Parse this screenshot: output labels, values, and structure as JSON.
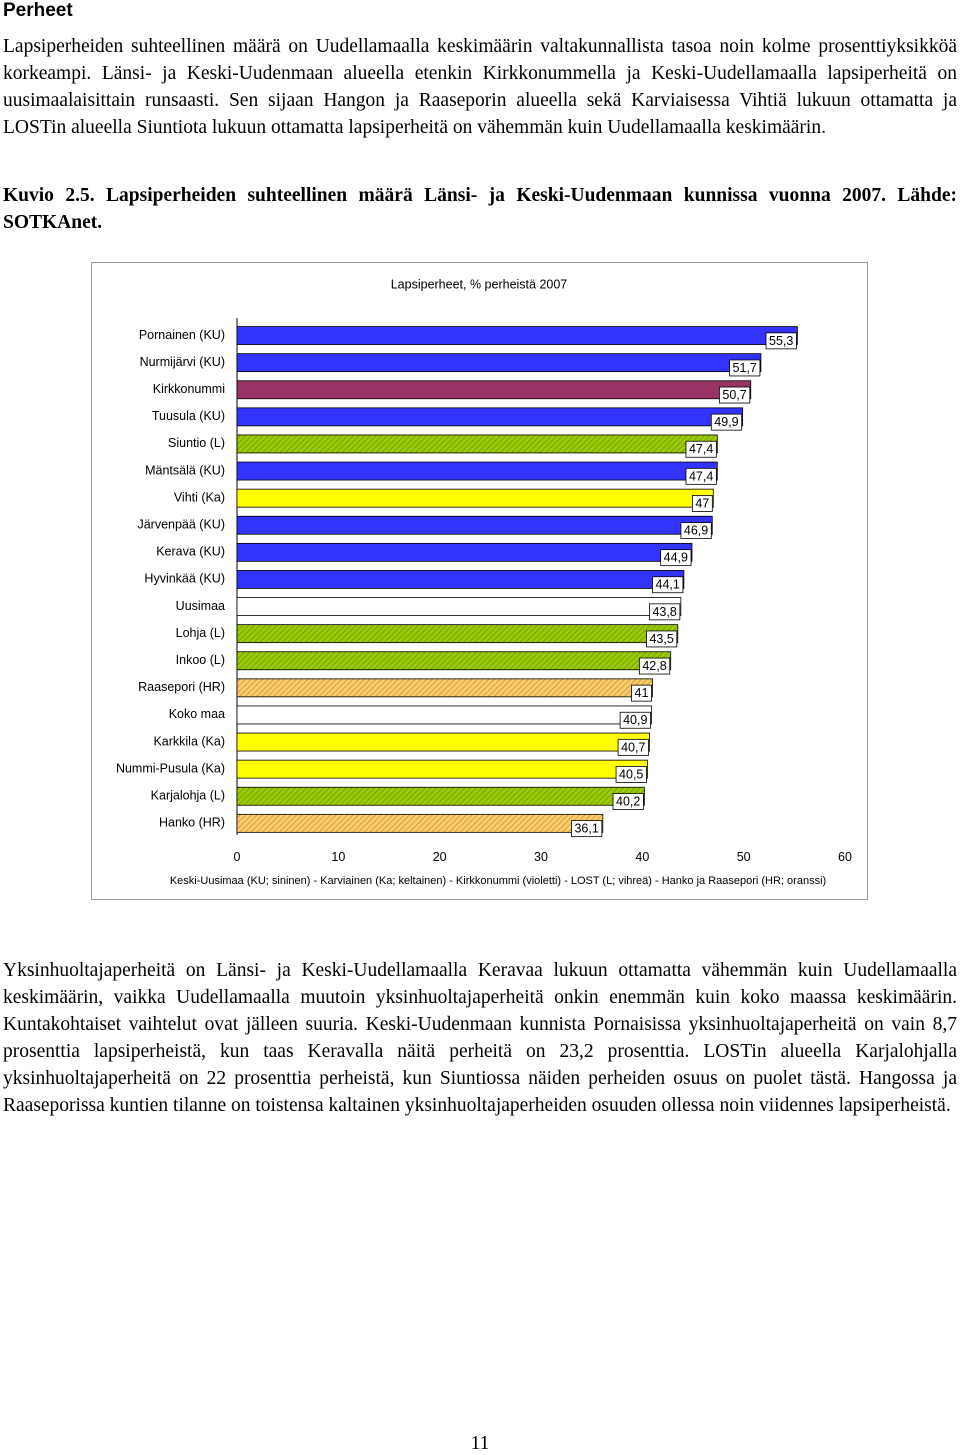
{
  "header": {
    "title": "Perheet"
  },
  "paragraphs": [
    "Lapsiperheiden suhteellinen määrä on Uudellamaalla keskimäärin valtakunnallista tasoa noin kolme prosenttiyksikköä korkeampi. Länsi- ja Keski-Uudenmaan alueella etenkin Kirkkonummella ja Keski-Uudellamaalla lapsiperheitä on uusimaalaisittain runsaasti. Sen sijaan Hangon ja Raaseporin alueella sekä Karviaisessa Vihtiä lukuun ottamatta ja LOSTin alueella Siuntiota lukuun ottamatta lapsiperheitä on vähemmän kuin Uudellamaalla keskimäärin.",
    "Yksinhuoltajaperheitä on Länsi- ja Keski-Uudellamaalla Keravaa lukuun ottamatta vähemmän kuin Uudellamaalla keskimäärin, vaikka Uudellamaalla muutoin yksinhuoltajaperheitä onkin enemmän kuin koko maassa keskimäärin. Kuntakohtaiset vaihtelut ovat jälleen suuria. Keski-Uudenmaan kunnista Pornaisissa yksinhuoltajaperheitä on vain 8,7 prosenttia lapsiperheistä, kun taas Keravalla näitä perheitä on 23,2 prosenttia. LOSTin alueella Karjalohjalla yksinhuoltajaperheitä on 22 prosenttia perheistä, kun Siuntiossa näiden perheiden osuus on puolet tästä. Hangossa ja Raaseporissa kuntien tilanne on toistensa kaltainen yksinhuoltajaperheiden osuuden ollessa noin viidennes lapsiperheistä."
  ],
  "caption": "Kuvio 2.5. Lapsiperheiden suhteellinen määrä Länsi- ja Keski-Uudenmaan kunnissa vuonna 2007. Lähde: SOTKAnet.",
  "page_number": "11",
  "chart_data": {
    "type": "barh",
    "title": "Lapsiperheet, % perheistä 2007",
    "xlabel": "Keski-Uusimaa (KU; sininen) - Karviainen (Ka; keltainen) - Kirkkonummi (violetti) - LOST (L; vihreä) - Hanko ja Raasepori (HR; oranssi)",
    "categories": [
      "Pornainen (KU)",
      "Nurmijärvi (KU)",
      "Kirkkonummi",
      "Tuusula (KU)",
      "Siuntio (L)",
      "Mäntsälä (KU)",
      "Vihti (Ka)",
      "Järvenpää (KU)",
      "Kerava (KU)",
      "Hyvinkää (KU)",
      "Uusimaa",
      "Lohja (L)",
      "Inkoo (L)",
      "Raasepori (HR)",
      "Koko maa",
      "Karkkila (Ka)",
      "Nummi-Pusula (Ka)",
      "Karjalohja (L)",
      "Hanko (HR)"
    ],
    "values": [
      55.3,
      51.7,
      50.7,
      49.9,
      47.4,
      47.4,
      47,
      46.9,
      44.9,
      44.1,
      43.8,
      43.5,
      42.8,
      41,
      40.9,
      40.7,
      40.5,
      40.2,
      36.1
    ],
    "value_labels": [
      "55,3",
      "51,7",
      "50,7",
      "49,9",
      "47,4",
      "47,4",
      "47",
      "46,9",
      "44,9",
      "44,1",
      "43,8",
      "43,5",
      "42,8",
      "41",
      "40,9",
      "40,7",
      "40,5",
      "40,2",
      "36,1"
    ],
    "colors": [
      "#3333ff",
      "#3333ff",
      "#993366",
      "#3333ff",
      "#99cc00",
      "#3333ff",
      "#ffff00",
      "#3333ff",
      "#3333ff",
      "#3333ff",
      "#ffffff",
      "#99cc00",
      "#99cc00",
      "#ffcc66",
      "#ffffff",
      "#ffff00",
      "#ffff00",
      "#99cc00",
      "#ffcc66"
    ],
    "hatched": [
      false,
      false,
      false,
      false,
      true,
      false,
      false,
      false,
      false,
      false,
      false,
      true,
      true,
      true,
      false,
      false,
      false,
      true,
      true
    ],
    "xlim": [
      0,
      60
    ],
    "xticks": [
      0,
      10,
      20,
      30,
      40,
      50,
      60
    ]
  }
}
